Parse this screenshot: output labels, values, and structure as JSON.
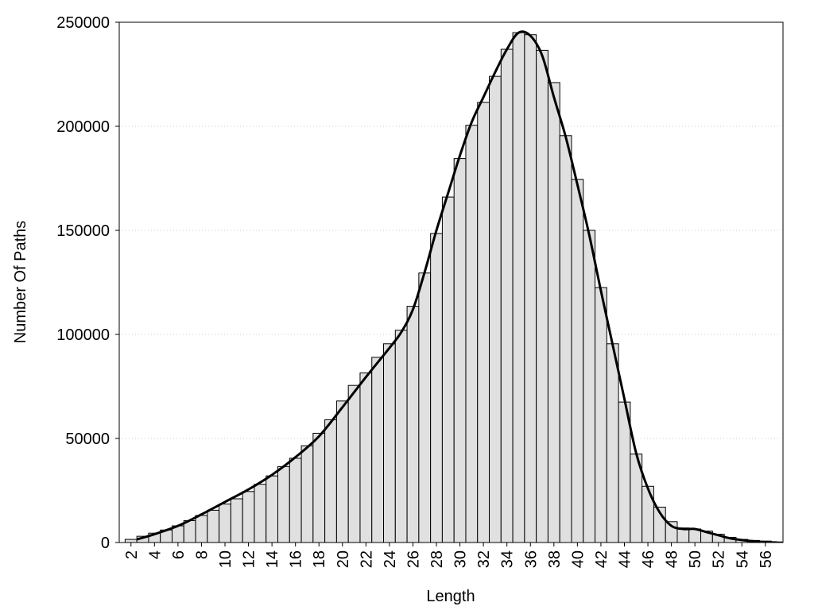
{
  "chart_data": {
    "type": "histogram",
    "xlabel": "Length",
    "ylabel": "Number Of Paths",
    "bins": [
      1.5,
      2.5,
      3.5,
      4.5,
      5.5,
      6.5,
      7.5,
      8.5,
      9.5,
      10.5,
      11.5,
      12.5,
      13.5,
      14.5,
      15.5,
      16.5,
      17.5,
      18.5,
      19.5,
      20.5,
      21.5,
      22.5,
      23.5,
      24.5,
      25.5,
      26.5,
      27.5,
      28.5,
      29.5,
      30.5,
      31.5,
      32.5,
      33.5,
      34.5,
      35.5,
      36.5,
      37.5,
      38.5,
      39.5,
      40.5,
      41.5,
      42.5,
      43.5,
      44.5,
      45.5,
      46.5,
      47.5,
      48.5,
      49.5,
      50.5,
      51.5,
      52.5,
      53.5,
      54.5,
      55.5,
      56.5,
      57.5
    ],
    "values": [
      1500,
      3000,
      4500,
      6000,
      8000,
      10500,
      13000,
      15500,
      18500,
      21000,
      24500,
      28000,
      32000,
      36500,
      40500,
      46500,
      52500,
      59000,
      68000,
      75500,
      81500,
      89000,
      95500,
      102000,
      113500,
      129500,
      148500,
      166000,
      184500,
      200500,
      211500,
      224000,
      237000,
      245000,
      244000,
      236500,
      221000,
      195500,
      174500,
      150000,
      122500,
      95500,
      67500,
      42500,
      27000,
      17000,
      10000,
      7000,
      6500,
      5500,
      4000,
      2500,
      1500,
      1000,
      700,
      300
    ],
    "color": "#e0e0e0",
    "line": {
      "x": [
        2.5,
        4,
        6,
        8,
        10,
        12,
        14,
        16,
        18,
        20,
        22,
        24,
        25,
        26,
        27,
        28,
        29,
        30,
        31,
        32,
        33,
        34,
        35,
        36,
        37,
        38,
        39,
        40,
        41,
        42,
        43,
        44,
        45,
        46,
        47,
        48,
        49,
        50,
        51,
        52,
        53,
        54,
        55,
        56,
        57
      ],
      "values": [
        1500,
        4000,
        8000,
        13500,
        19500,
        25500,
        32500,
        41000,
        51000,
        65000,
        79500,
        93500,
        101000,
        112000,
        130000,
        150000,
        168000,
        186000,
        202000,
        214000,
        226000,
        237000,
        245000,
        243500,
        234000,
        214000,
        195000,
        172000,
        148000,
        121000,
        95000,
        69000,
        43000,
        26000,
        14500,
        8000,
        6500,
        6500,
        5000,
        3500,
        2000,
        1200,
        600,
        200,
        0
      ],
      "color": "#000000"
    },
    "xlim": [
      1,
      57.5
    ],
    "ylim": [
      0,
      250000
    ],
    "xticks": [
      2,
      4,
      6,
      8,
      10,
      12,
      14,
      16,
      18,
      20,
      22,
      24,
      26,
      28,
      30,
      32,
      34,
      36,
      38,
      40,
      42,
      44,
      46,
      48,
      50,
      52,
      54,
      56
    ],
    "yticks": [
      0,
      50000,
      100000,
      150000,
      200000,
      250000
    ],
    "grid": true
  }
}
